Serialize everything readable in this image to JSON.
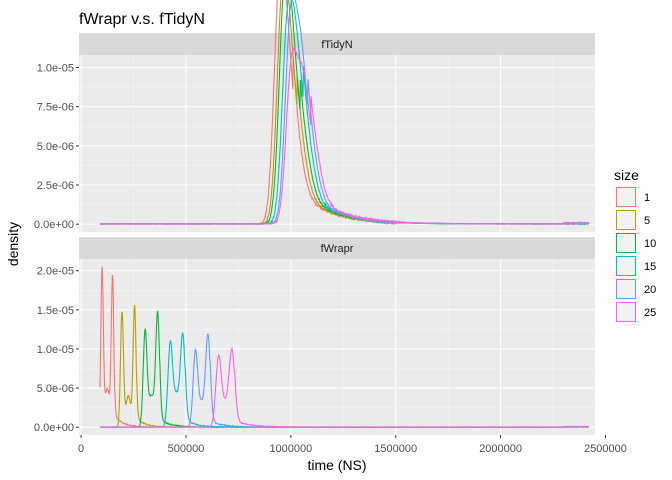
{
  "chart_data": {
    "type": "line",
    "title": "fWrapr v.s. fTidyN",
    "xlabel": "time (NS)",
    "ylabel": "density",
    "xlim": [
      -10000,
      2450000
    ],
    "x_ticks": [
      0,
      500000,
      1000000,
      1500000,
      2000000,
      2500000
    ],
    "x_tick_labels": [
      "0",
      "500000",
      "1000000",
      "1500000",
      "2000000",
      "2500000"
    ],
    "grid": true,
    "legend_position": "right",
    "legend": {
      "title": "size",
      "entries": [
        {
          "label": "1",
          "color": "#F8766D"
        },
        {
          "label": "5",
          "color": "#B79F00"
        },
        {
          "label": "10",
          "color": "#00BA38"
        },
        {
          "label": "15",
          "color": "#00BFC4"
        },
        {
          "label": "20",
          "color": "#619CFF"
        },
        {
          "label": "25",
          "color": "#F564E3"
        }
      ]
    },
    "panels": [
      {
        "strip": "fTidyN",
        "ylim": [
          -5e-07,
          1.08e-05
        ],
        "y_ticks": [
          0,
          2.5e-06,
          5e-06,
          7.5e-06,
          1e-05
        ],
        "y_tick_labels": [
          "0.0e+00",
          "2.5e-06",
          "5.0e-06",
          "7.5e-06",
          "1.0e-05"
        ],
        "series": [
          {
            "name": "1",
            "x_min": 90000,
            "x_max": 2420000,
            "peaks": [
              [
                940000,
                1.02e-05,
                25000
              ],
              [
                975000,
                8.5e-06,
                30000
              ],
              [
                1010000,
                4e-06,
                40000
              ]
            ],
            "tail": [
              1010000,
              2.5e-06,
              150000
            ]
          },
          {
            "name": "5",
            "x_min": 90000,
            "x_max": 2420000,
            "peaks": [
              [
                955000,
                1.03e-05,
                25000
              ],
              [
                990000,
                8e-06,
                30000
              ],
              [
                1030000,
                4e-06,
                40000
              ]
            ],
            "tail": [
              1030000,
              2.2e-06,
              150000
            ]
          },
          {
            "name": "10",
            "x_min": 90000,
            "x_max": 2420000,
            "peaks": [
              [
                965000,
                1.04e-05,
                25000
              ],
              [
                1000000,
                8.5e-06,
                30000
              ],
              [
                1045000,
                4.2e-06,
                40000
              ]
            ],
            "tail": [
              1045000,
              2.2e-06,
              150000
            ]
          },
          {
            "name": "15",
            "x_min": 90000,
            "x_max": 2420000,
            "peaks": [
              [
                980000,
                9.5e-06,
                25000
              ],
              [
                1020000,
                8e-06,
                30000
              ],
              [
                1060000,
                4.5e-06,
                40000
              ]
            ],
            "tail": [
              1060000,
              2.2e-06,
              150000
            ]
          },
          {
            "name": "20",
            "x_min": 90000,
            "x_max": 2420000,
            "peaks": [
              [
                995000,
                1.03e-05,
                25000
              ],
              [
                1040000,
                8.5e-06,
                30000
              ],
              [
                1080000,
                4e-06,
                40000
              ]
            ],
            "tail": [
              1080000,
              2e-06,
              150000
            ]
          },
          {
            "name": "25",
            "x_min": 90000,
            "x_max": 2420000,
            "peaks": [
              [
                1000000,
                8.5e-06,
                25000
              ],
              [
                1050000,
                7e-06,
                30000
              ],
              [
                1095000,
                4e-06,
                40000
              ]
            ],
            "tail": [
              1095000,
              2e-06,
              150000
            ]
          }
        ]
      },
      {
        "strip": "fWrapr",
        "ylim": [
          -1e-06,
          2.15e-05
        ],
        "y_ticks": [
          0,
          5e-06,
          1e-05,
          1.5e-05,
          2e-05
        ],
        "y_tick_labels": [
          "0.0e+00",
          "5.0e-06",
          "1.0e-05",
          "1.5e-05",
          "2.0e-05"
        ],
        "series": [
          {
            "name": "1",
            "x_min": 90000,
            "x_max": 2420000,
            "peaks": [
              [
                100000,
                2e-05,
                6000
              ],
              [
                150000,
                1.9e-05,
                6000
              ],
              [
                125000,
                5e-06,
                12000
              ]
            ],
            "tail": [
              160000,
              1.5e-06,
              40000
            ]
          },
          {
            "name": "5",
            "x_min": 90000,
            "x_max": 2420000,
            "peaks": [
              [
                195000,
                1.47e-05,
                7000
              ],
              [
                255000,
                1.55e-05,
                7000
              ],
              [
                225000,
                4e-06,
                12000
              ]
            ],
            "tail": [
              265000,
              1.2e-06,
              40000
            ]
          },
          {
            "name": "10",
            "x_min": 90000,
            "x_max": 2420000,
            "peaks": [
              [
                305000,
                1.2e-05,
                9000
              ],
              [
                365000,
                1.43e-05,
                9000
              ],
              [
                335000,
                4e-06,
                15000
              ]
            ],
            "tail": [
              375000,
              1e-06,
              50000
            ]
          },
          {
            "name": "15",
            "x_min": 90000,
            "x_max": 2420000,
            "peaks": [
              [
                425000,
                1.05e-05,
                11000
              ],
              [
                485000,
                1.15e-05,
                11000
              ],
              [
                455000,
                4e-06,
                15000
              ]
            ],
            "tail": [
              495000,
              1e-06,
              50000
            ]
          },
          {
            "name": "20",
            "x_min": 90000,
            "x_max": 2420000,
            "peaks": [
              [
                545000,
                9.5e-06,
                11000
              ],
              [
                605000,
                1.15e-05,
                11000
              ],
              [
                575000,
                3e-06,
                15000
              ]
            ],
            "tail": [
              615000,
              8e-07,
              60000
            ]
          },
          {
            "name": "25",
            "x_min": 90000,
            "x_max": 2420000,
            "peaks": [
              [
                655000,
                8.5e-06,
                13000
              ],
              [
                720000,
                9e-06,
                13000
              ],
              [
                690000,
                3e-06,
                20000
              ]
            ],
            "tail": [
              730000,
              8e-07,
              80000
            ]
          }
        ]
      }
    ]
  }
}
